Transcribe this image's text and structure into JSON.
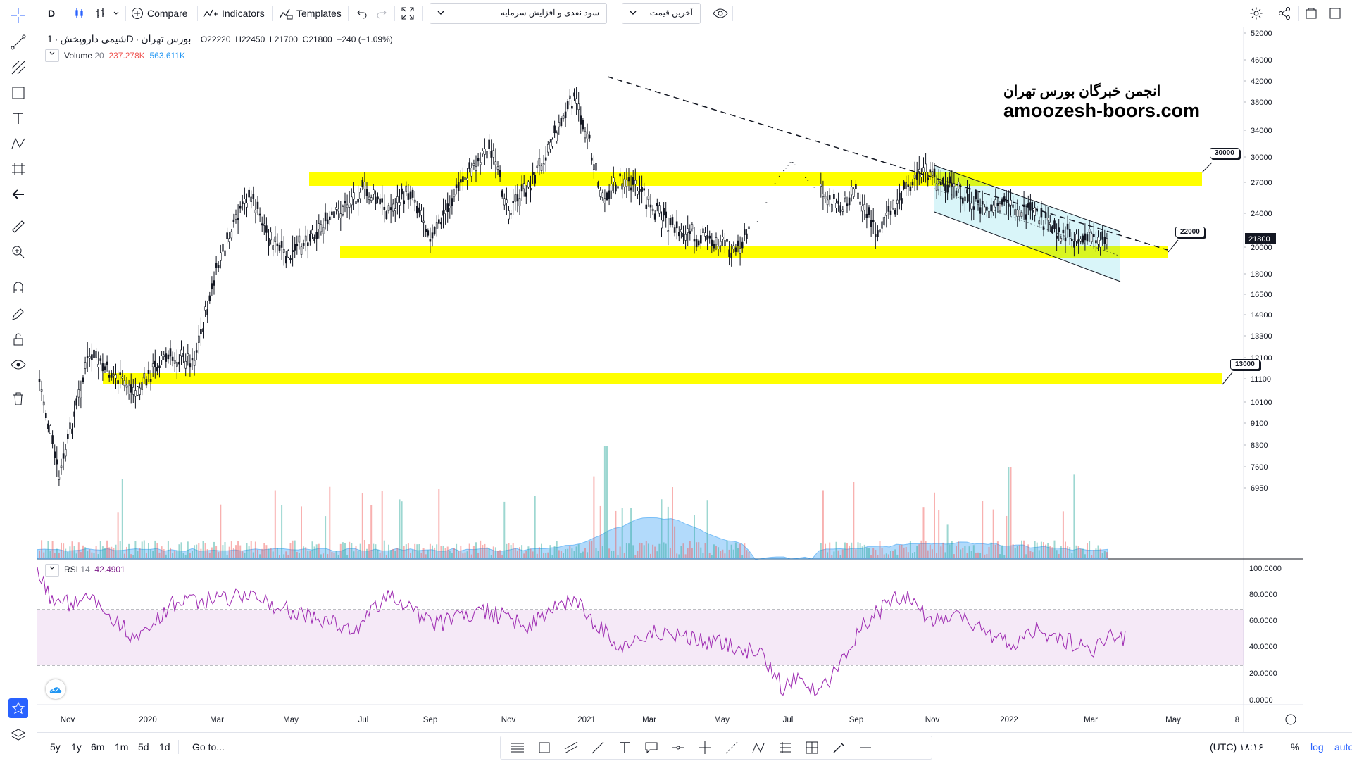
{
  "toolbar": {
    "interval": "D",
    "compare": "Compare",
    "indicators": "Indicators",
    "templates": "Templates",
    "select_fundamental": "سود نقدی و افزایش سرمایه",
    "select_price": "آخرین قیمت"
  },
  "legend": {
    "exchange": "بورس تهران",
    "timeframe": "1D",
    "symbol": "شیمی داروپخش",
    "o_label": "O",
    "o": "22220",
    "h_label": "H",
    "h": "22450",
    "l_label": "L",
    "l": "21700",
    "c_label": "C",
    "c": "21800",
    "change": "−240 (−1.09%)",
    "volume_name": "Volume",
    "volume_len": "20",
    "volume_val1": "237.278K",
    "volume_val2": "563.611K",
    "rsi_name": "RSI",
    "rsi_len": "14",
    "rsi_val": "42.4901"
  },
  "watermark": {
    "line1": "انجمن خبرگان بورس تهران",
    "line2": "amoozesh-boors.com"
  },
  "callouts": {
    "c30000": "30000",
    "c22000": "22000",
    "c13000": "13000"
  },
  "price_axis": {
    "labels": [
      "52000",
      "46000",
      "42000",
      "38000",
      "34000",
      "30000",
      "27000",
      "24000",
      "20000",
      "18000",
      "16500",
      "14900",
      "13300",
      "12100",
      "11100",
      "10100",
      "9100",
      "8300",
      "7600",
      "6950"
    ],
    "current": "21800"
  },
  "rsi_axis": {
    "labels": [
      "100.0000",
      "80.0000",
      "60.0000",
      "40.0000",
      "20.0000",
      "0.0000"
    ]
  },
  "time_axis": {
    "labels": [
      "Nov",
      "2020",
      "Mar",
      "May",
      "Jul",
      "Sep",
      "Nov",
      "2021",
      "Mar",
      "May",
      "Jul",
      "Sep",
      "Nov",
      "2022",
      "Mar",
      "May",
      "8"
    ]
  },
  "bottom": {
    "ranges": [
      "5y",
      "1y",
      "6m",
      "1m",
      "5d",
      "1d"
    ],
    "goto": "Go to...",
    "clock": "۱۸:۱۶ (UTC)",
    "pct": "%",
    "log": "log",
    "auto": "auto"
  },
  "colors": {
    "zone": "#ffff00",
    "accent": "#2962ff",
    "rsi": "#9c27b0",
    "down": "#ef5350",
    "up": "#26a69a"
  }
}
